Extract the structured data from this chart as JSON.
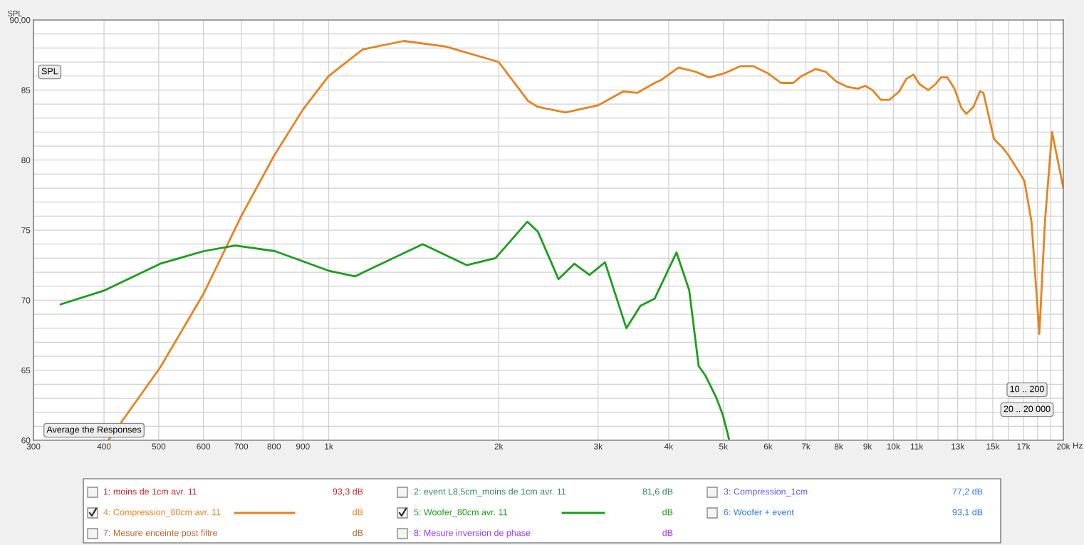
{
  "chart_data": {
    "type": "line",
    "ylabel": "SPL",
    "log": "x",
    "xlim": [
      300,
      20000
    ],
    "xticks": [
      300,
      400,
      500,
      600,
      700,
      800,
      900,
      {
        "value": 1000,
        "label": "1k"
      },
      {
        "value": 2000,
        "label": "2k"
      },
      {
        "value": 3000,
        "label": "3k"
      },
      {
        "value": 4000,
        "label": "4k"
      },
      {
        "value": 5000,
        "label": "5k"
      },
      {
        "value": 6000,
        "label": "6k"
      },
      {
        "value": 7000,
        "label": "7k"
      },
      {
        "value": 8000,
        "label": "8k"
      },
      {
        "value": 9000,
        "label": "9k"
      },
      {
        "value": 10000,
        "label": "10k"
      },
      {
        "value": 11000,
        "label": "11k"
      },
      {
        "value": 12000,
        "label": null
      },
      {
        "value": 13000,
        "label": "13k"
      },
      {
        "value": 14000,
        "label": null
      },
      {
        "value": 15000,
        "label": "15k"
      },
      {
        "value": 16000,
        "label": null
      },
      {
        "value": 17000,
        "label": "17k"
      },
      {
        "value": 18000,
        "label": null
      },
      {
        "value": 19000,
        "label": null
      },
      {
        "value": 20000,
        "label": "20k"
      }
    ],
    "xlabel": "Hz",
    "ylim": [
      60,
      90
    ],
    "yticks": [
      60,
      {
        "value": 61,
        "label": null
      },
      {
        "value": 62,
        "label": null
      },
      {
        "value": 63,
        "label": null
      },
      {
        "value": 64,
        "label": null
      },
      65,
      {
        "value": 66,
        "label": null
      },
      {
        "value": 67,
        "label": null
      },
      {
        "value": 68,
        "label": null
      },
      {
        "value": 69,
        "label": null
      },
      70,
      {
        "value": 71,
        "label": null
      },
      {
        "value": 72,
        "label": null
      },
      {
        "value": 73,
        "label": null
      },
      {
        "value": 74,
        "label": null
      },
      75,
      {
        "value": 76,
        "label": null
      },
      {
        "value": 77,
        "label": null
      },
      {
        "value": 78,
        "label": null
      },
      {
        "value": 79,
        "label": null
      },
      80,
      {
        "value": 81,
        "label": null
      },
      {
        "value": 82,
        "label": null
      },
      {
        "value": 83,
        "label": null
      },
      {
        "value": 84,
        "label": null
      },
      85,
      {
        "value": 86,
        "label": null
      },
      {
        "value": 87,
        "label": null
      },
      {
        "value": 88,
        "label": null
      },
      {
        "value": 89,
        "label": null
      },
      {
        "value": 90,
        "label": "90,00"
      }
    ],
    "grid": true,
    "legend": "bottom",
    "marker": "none",
    "line_style": "solid",
    "series": [
      {
        "name": "4: Compression_80cm avr. 11",
        "color": "#e8821e",
        "x": [
          407,
          433,
          503,
          601,
          700,
          800,
          900,
          1000,
          1149,
          1359,
          1612,
          2000,
          2257,
          2346,
          2625,
          2997,
          3325,
          3523,
          3776,
          3874,
          4164,
          4464,
          4716,
          5024,
          5353,
          5655,
          5990,
          6328,
          6645,
          6879,
          7286,
          7588,
          7922,
          8321,
          8663,
          8917,
          9179,
          9503,
          9838,
          10244,
          10545,
          10852,
          11136,
          11529,
          11866,
          12142,
          12461,
          12826,
          13202,
          13470,
          13863,
          14235,
          14437,
          15074,
          15605,
          16016,
          16725,
          17066,
          17565,
          18133,
          18555,
          19097,
          20000
        ],
        "values": [
          60.0,
          61.5,
          65.2,
          70.5,
          76.0,
          80.3,
          83.6,
          86.0,
          87.9,
          88.5,
          88.1,
          87.0,
          84.2,
          83.8,
          83.4,
          83.9,
          84.9,
          84.8,
          85.5,
          85.7,
          86.6,
          86.3,
          85.9,
          86.2,
          86.7,
          86.7,
          86.2,
          85.5,
          85.5,
          86.0,
          86.5,
          86.3,
          85.6,
          85.2,
          85.1,
          85.3,
          85.0,
          84.3,
          84.3,
          84.9,
          85.8,
          86.1,
          85.4,
          85.0,
          85.4,
          85.9,
          85.9,
          85.1,
          83.7,
          83.3,
          83.8,
          84.9,
          84.8,
          81.5,
          80.9,
          80.3,
          79.1,
          78.5,
          75.6,
          67.6,
          75.6,
          82.0,
          78.0
        ]
      },
      {
        "name": "5: Woofer_80cm avr. 11",
        "color": "#1a9e1a",
        "x": [
          335,
          401,
          503,
          601,
          683,
          803,
          1000,
          1113,
          1467,
          1756,
          1974,
          2248,
          2346,
          2553,
          2722,
          2896,
          3085,
          3366,
          3565,
          3776,
          4130,
          4350,
          4520,
          4650,
          4850,
          4990,
          5115
        ],
        "values": [
          69.7,
          70.7,
          72.6,
          73.5,
          73.9,
          73.5,
          72.1,
          71.7,
          74.0,
          72.5,
          73.0,
          75.6,
          74.9,
          71.5,
          72.6,
          71.8,
          72.7,
          68.0,
          69.6,
          70.1,
          73.4,
          70.7,
          65.3,
          64.6,
          63.1,
          61.8,
          60.1
        ]
      }
    ],
    "annotations": [
      "1: moins de 1cm avr. 11",
      "93,3 dB",
      "2: event L8,5cm_moins de 1cm avr. 11",
      "81,6 dB",
      "3: Compression_1cm",
      "77,2 dB",
      "dB",
      "dB",
      "6: Woofer + event",
      "93,1 dB",
      "7: Mesure enceinte post filtre",
      "dB",
      "8: Mesure inversion de phase",
      "dB",
      "SPL",
      "Average the Responses",
      "10 .. 200",
      "20 .. 20 000"
    ]
  }
}
